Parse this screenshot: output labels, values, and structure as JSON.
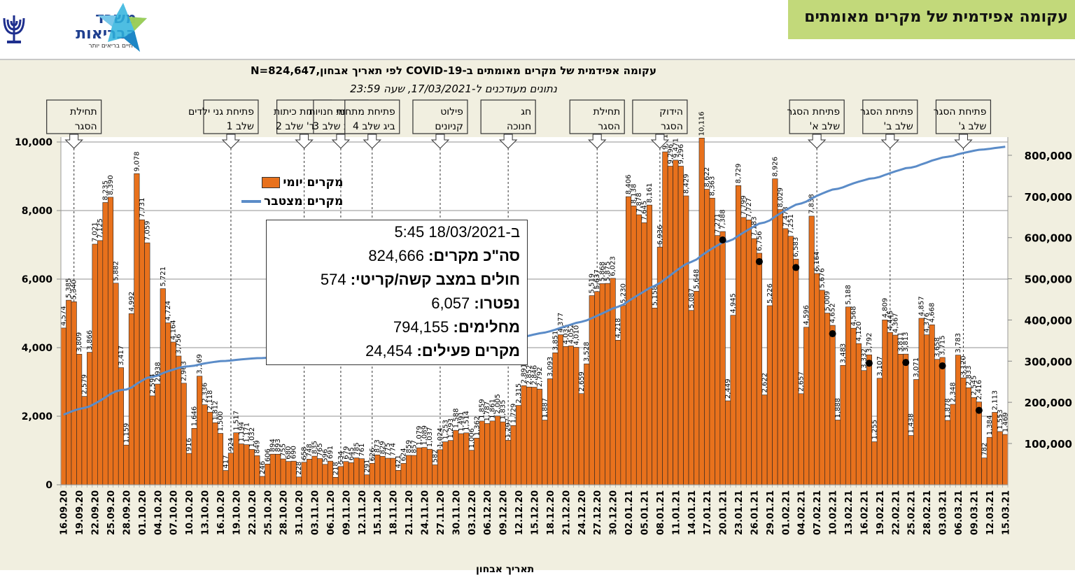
{
  "header": {
    "org_name_line1": "משרד",
    "org_name_line2": "הבריאות",
    "org_tagline": "לחיים בריאים יותר",
    "banner_title": "עקומה אפידמית של מקרים מאומתים"
  },
  "infobox": {
    "date_line": "ב-18/03/2021 5:45",
    "rows": [
      {
        "label": "סה\"כ מקרים:",
        "value": "824,666"
      },
      {
        "label": "חולים במצב קשה/קריטי:",
        "value": "574"
      },
      {
        "label": "נפטרו:",
        "value": "6,057"
      },
      {
        "label": "מחלימים:",
        "value": "794,155"
      },
      {
        "label": "מקרים פעילים:",
        "value": "24,454"
      }
    ]
  },
  "colors": {
    "bar": "#e8711c",
    "line": "#5b8cc8",
    "banner": "#c2d97a",
    "plot_bg": "#ffffff",
    "outer_bg": "#f1efe0"
  },
  "chart_data": {
    "type": "bar",
    "title": "עקומה אפידמית של מקרים מאומתים ב-COVID-19 לפי תאריך אבחון,N=824,647",
    "subtitle": "נתונים מעודכנים ל-17/03/2021, שעה 23:59",
    "xlabel": "תאריך אבחון",
    "ylabel_left": "",
    "ylabel_right": "",
    "ylim": [
      0,
      10000
    ],
    "y2lim": [
      0,
      850000
    ],
    "yticks": [
      "0",
      "2,000",
      "4,000",
      "6,000",
      "8,000",
      "10,000"
    ],
    "y2ticks": [
      "100,000",
      "200,000",
      "300,000",
      "400,000",
      "500,000",
      "600,000",
      "700,000",
      "800,000"
    ],
    "grid": true,
    "legend_position": "top-left",
    "legend": [
      {
        "name": "מקרים יומי",
        "kind": "bar"
      },
      {
        "name": "מקרים מצטבר",
        "kind": "line"
      }
    ],
    "start_date": "16.09.20",
    "xtick_labels": [
      "16.09.20",
      "19.09.20",
      "22.09.20",
      "25.09.20",
      "28.09.20",
      "01.10.20",
      "04.10.20",
      "07.10.20",
      "10.10.20",
      "13.10.20",
      "16.10.20",
      "19.10.20",
      "22.10.20",
      "25.10.20",
      "28.10.20",
      "31.10.20",
      "03.11.20",
      "06.11.20",
      "09.11.20",
      "12.11.20",
      "15.11.20",
      "18.11.20",
      "21.11.20",
      "24.11.20",
      "27.11.20",
      "30.11.20",
      "03.12.20",
      "06.12.20",
      "09.12.20",
      "12.12.20",
      "15.12.20",
      "18.12.20",
      "21.12.20",
      "24.12.20",
      "27.12.20",
      "30.12.20",
      "02.01.21",
      "05.01.21",
      "08.01.21",
      "11.01.21",
      "14.01.21",
      "17.01.21",
      "20.01.21",
      "23.01.21",
      "26.01.21",
      "29.01.21",
      "01.02.21",
      "04.02.21",
      "07.02.21",
      "10.02.21",
      "13.02.21",
      "16.02.21",
      "19.02.21",
      "22.02.21",
      "25.02.21",
      "28.02.21",
      "03.03.21",
      "06.03.21",
      "09.03.21",
      "12.03.21",
      "15.03.21"
    ],
    "daily_cases": [
      4574,
      5385,
      5340,
      3809,
      2579,
      3866,
      7021,
      7125,
      8235,
      8390,
      5882,
      3417,
      1159,
      4992,
      9078,
      7731,
      7059,
      2594,
      2938,
      5721,
      4724,
      4164,
      3756,
      2963,
      916,
      1646,
      3169,
      2336,
      2118,
      1812,
      1500,
      417,
      924,
      1517,
      1194,
      1171,
      1032,
      849,
      246,
      606,
      894,
      893,
      755,
      680,
      690,
      228,
      658,
      748,
      835,
      765,
      596,
      691,
      218,
      534,
      679,
      645,
      785,
      761,
      291,
      626,
      873,
      829,
      775,
      774,
      421,
      624,
      859,
      857,
      1079,
      1089,
      1037,
      582,
      1024,
      1253,
      1293,
      1588,
      1491,
      1514,
      1006,
      1362,
      1859,
      1787,
      1861,
      2005,
      1835,
      1297,
      1729,
      2315,
      2891,
      2852,
      2846,
      2792,
      1887,
      3093,
      3851,
      4377,
      4035,
      4052,
      4010,
      2659,
      3528,
      5519,
      5637,
      5868,
      5875,
      6023,
      4218,
      5230,
      8406,
      8138,
      7878,
      7645,
      8161,
      5158,
      6936,
      9713,
      9296,
      9471,
      9296,
      8429,
      5087,
      5648,
      10116,
      8622,
      8363,
      7271,
      7388,
      2449,
      4945,
      8729,
      7799,
      7727,
      7183,
      6756,
      2622,
      5226,
      8926,
      8029,
      7473,
      7251,
      6583,
      2657,
      4596,
      7838,
      6164,
      5676,
      5009,
      4652,
      1888,
      3483,
      5188,
      4568,
      4120,
      3332,
      3792,
      1255,
      3107,
      4809,
      4445,
      4367,
      3811,
      3813,
      1438,
      3071,
      4857,
      4376,
      4668,
      3658,
      3715,
      1878,
      2348,
      3783,
      3120,
      2833,
      2545,
      2416,
      782,
      1384,
      2113,
      1553,
      1469
    ],
    "cumulative_cases": [
      170000,
      175000,
      180000,
      184000,
      186500,
      190000,
      197000,
      204000,
      212000,
      220500,
      226500,
      230000,
      231000,
      236000,
      245000,
      252500,
      259500,
      262000,
      265000,
      271000,
      275500,
      279500,
      283500,
      286500,
      287500,
      289000,
      292000,
      294500,
      296500,
      298500,
      300000,
      300500,
      301500,
      303000,
      304200,
      305400,
      306400,
      307200,
      307500,
      308100,
      309000,
      309900,
      310600,
      311300,
      312000,
      312200,
      312900,
      313600,
      314400,
      315200,
      315800,
      316500,
      316700,
      317300,
      318000,
      318600,
      319400,
      320100,
      320400,
      321100,
      322000,
      322800,
      323600,
      324400,
      324800,
      325400,
      326300,
      327200,
      328200,
      329300,
      330300,
      330900,
      331900,
      333200,
      334500,
      336100,
      337600,
      339100,
      340100,
      341500,
      343300,
      345100,
      347000,
      349000,
      350800,
      352100,
      353800,
      356200,
      359000,
      361900,
      364800,
      367600,
      369500,
      372600,
      376400,
      380800,
      384800,
      388900,
      392900,
      395500,
      399100,
      404600,
      410200,
      416100,
      422000,
      428000,
      432200,
      437500,
      445900,
      454000,
      461900,
      469500,
      477700,
      482900,
      489800,
      499500,
      508800,
      518300,
      527600,
      536000,
      541100,
      546800,
      556900,
      565500,
      573900,
      581100,
      588500,
      591000,
      595900,
      604600,
      612400,
      620100,
      627300,
      634100,
      636700,
      641900,
      650900,
      658900,
      666400,
      673600,
      680200,
      682900,
      687500,
      695300,
      701500,
      707100,
      712100,
      716800,
      718700,
      722100,
      727300,
      731900,
      736000,
      739300,
      743100,
      744400,
      747500,
      752300,
      756700,
      761100,
      764900,
      768700,
      770100,
      773200,
      778100,
      782400,
      787100,
      790800,
      794500,
      796400,
      798700,
      802500,
      805600,
      808400,
      811000,
      813400,
      814200,
      815600,
      817700,
      819200,
      820700
    ],
    "daily_markers": [
      "20.01.21",
      "27.01.21",
      "03.02.21",
      "10.02.21",
      "17.02.21",
      "24.02.21",
      "03.03.21",
      "10.03.21",
      "16.03.21"
    ],
    "annotations": [
      {
        "text_line1": "תחילת",
        "text_line2": "הסגר",
        "date": "18.09.20"
      },
      {
        "text_line1": "פתיחת גני ילדים",
        "text_line2": "שלב 1",
        "date": "18.10.20"
      },
      {
        "text_line1": "פתיחת כיתות",
        "text_line2": "א'-ד' שלב 2",
        "date": "01.11.20"
      },
      {
        "text_line1": "פתיחת חנויות",
        "text_line2": "רחוב שלב 3",
        "date": "08.11.20"
      },
      {
        "text_line1": "פתיחת מתחמי",
        "text_line2": "ביג שלב 4",
        "date": "14.11.20"
      },
      {
        "text_line1": "פילוט",
        "text_line2": "קניונים",
        "date": "27.11.20"
      },
      {
        "text_line1": "חג",
        "text_line2": "חנוכה",
        "date": "10.12.20"
      },
      {
        "text_line1": "תחילת",
        "text_line2": "הסגר",
        "date": "27.12.20"
      },
      {
        "text_line1": "הידוק",
        "text_line2": "הסגר",
        "date": "08.01.21"
      },
      {
        "text_line1": "פתיחת הסגר",
        "text_line2": "שלב א'",
        "date": "07.02.21"
      },
      {
        "text_line1": "פתיחת הסגר",
        "text_line2": "שלב ב'",
        "date": "21.02.21"
      },
      {
        "text_line1": "פתיחת הסגר",
        "text_line2": "שלב ג'",
        "date": "07.03.21"
      }
    ]
  }
}
